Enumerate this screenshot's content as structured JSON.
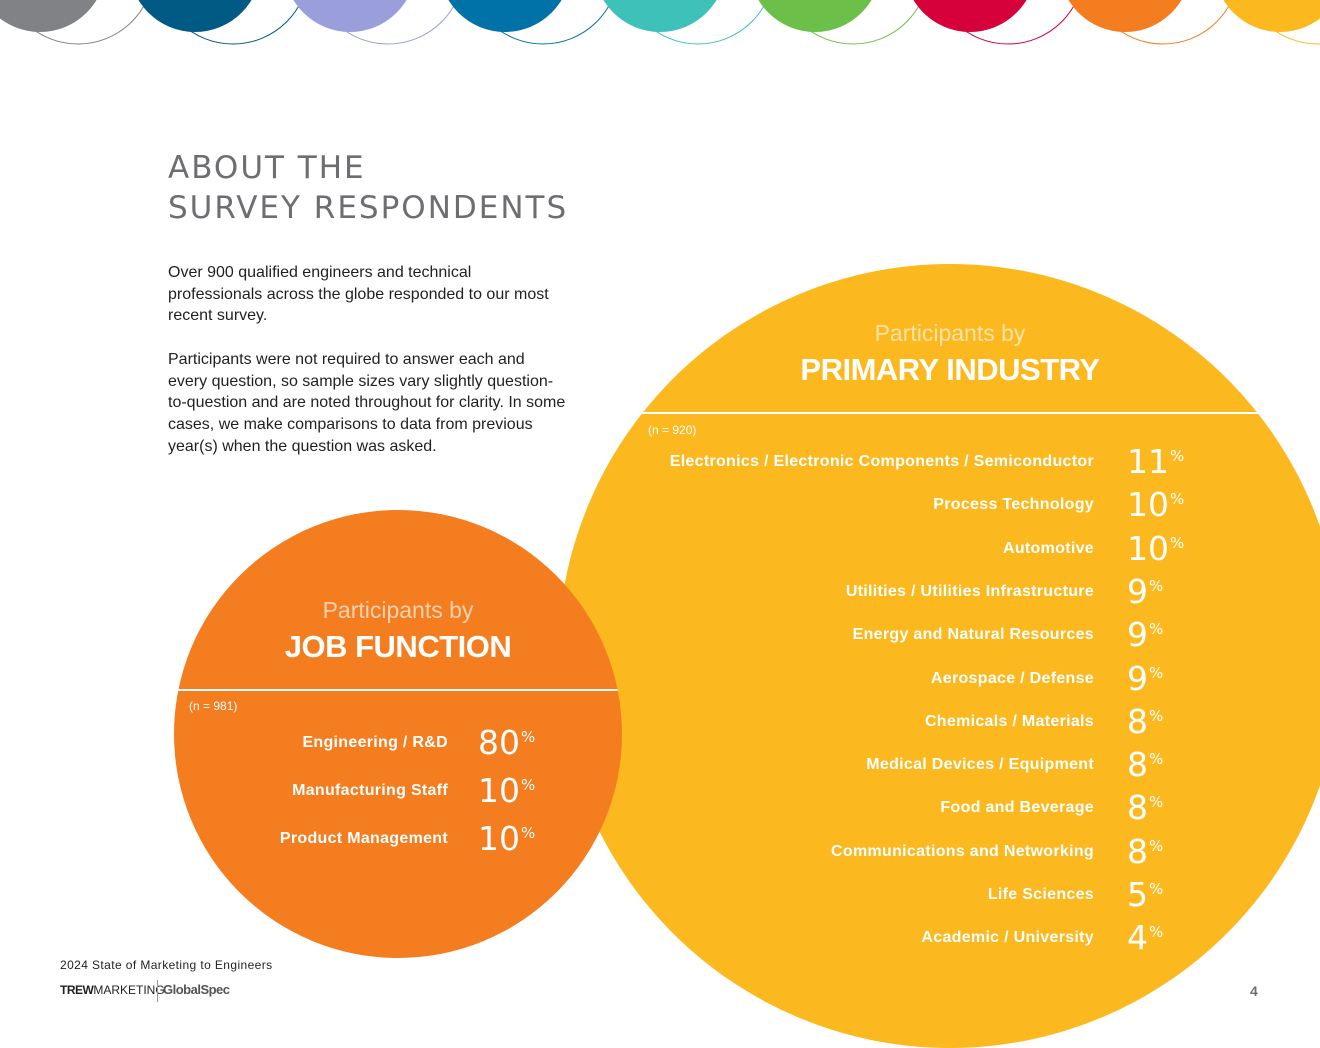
{
  "header": {
    "title_line1": "ABOUT THE",
    "title_line2": "SURVEY RESPONDENTS"
  },
  "intro": {
    "paragraph1": "Over 900 qualified engineers and technical professionals across the globe responded to our most recent survey.",
    "paragraph2": "Participants were not required to answer each and every question, so sample sizes vary slightly question-to-question and are noted throughout for clarity. In some cases, we make comparisons to data from previous year(s) when the question was asked."
  },
  "decorative_arcs": {
    "colors": [
      "#808285",
      "#005a84",
      "#9a9edb",
      "#0072a8",
      "#3ec1b9",
      "#6cc04a",
      "#d6003b",
      "#f47d20",
      "#fbb91f"
    ]
  },
  "colors": {
    "primary_industry_circle": "#fbb91f",
    "job_function_circle": "#f47d20",
    "title_gray": "#6d6e71"
  },
  "primary_industry": {
    "subtitle": "Participants by",
    "heading": "PRIMARY INDUSTRY",
    "sample_size": "(n = 920)",
    "unit": "%",
    "items": [
      {
        "label": "Electronics / Electronic Components / Semiconductor",
        "value": "11"
      },
      {
        "label": "Process Technology",
        "value": "10"
      },
      {
        "label": "Automotive",
        "value": "10"
      },
      {
        "label": "Utilities / Utilities Infrastructure",
        "value": "9"
      },
      {
        "label": "Energy and Natural Resources",
        "value": "9"
      },
      {
        "label": "Aerospace / Defense",
        "value": "9"
      },
      {
        "label": "Chemicals / Materials",
        "value": "8"
      },
      {
        "label": "Medical Devices / Equipment",
        "value": "8"
      },
      {
        "label": "Food and Beverage",
        "value": "8"
      },
      {
        "label": "Communications and Networking",
        "value": "8"
      },
      {
        "label": "Life Sciences",
        "value": "5"
      },
      {
        "label": "Academic / University",
        "value": "4"
      }
    ]
  },
  "job_function": {
    "subtitle": "Participants by",
    "heading": "JOB FUNCTION",
    "sample_size": "(n = 981)",
    "unit": "%",
    "items": [
      {
        "label": "Engineering / R&D",
        "value": "80"
      },
      {
        "label": "Manufacturing Staff",
        "value": "10"
      },
      {
        "label": "Product Management",
        "value": "10"
      }
    ]
  },
  "footer": {
    "report_title": "2024 State of Marketing to Engineers",
    "logo_trew_bold": "TREW",
    "logo_trew_rest": "MARKETING",
    "logo_globalspec": "GlobalSpec",
    "page_number": "4"
  }
}
